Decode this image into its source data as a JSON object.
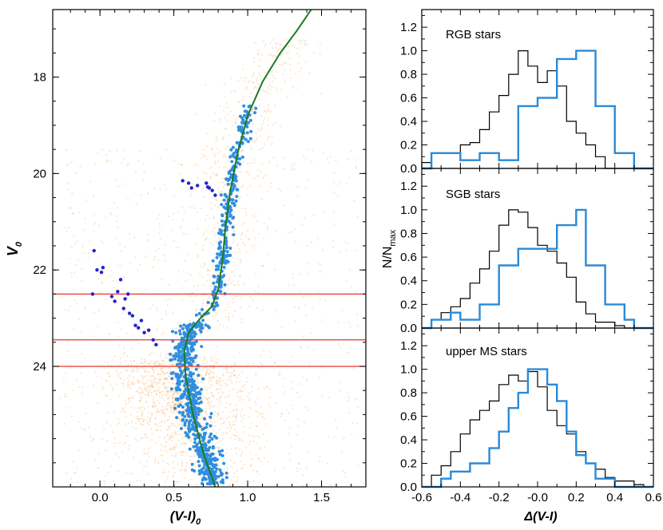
{
  "chart_data": [
    {
      "type": "scatter",
      "panel": "left",
      "xlabel": "(V-I)",
      "xlabel_sub": "0",
      "ylabel": "V",
      "ylabel_sub": "0",
      "xlim": [
        -0.32,
        1.8
      ],
      "ylim": [
        26.5,
        16.6
      ],
      "y_inverted": true,
      "xticks": [
        0.0,
        0.5,
        1.0,
        1.5
      ],
      "xtick_labels": [
        "0.0",
        "0.5",
        "1.0",
        "1.5"
      ],
      "yticks": [
        18,
        20,
        22,
        24
      ],
      "ytick_labels": [
        "18",
        "20",
        "22",
        "24"
      ],
      "horizontal_lines": [
        22.5,
        23.45,
        24.0
      ],
      "hline_color": "#e8342a",
      "background_stars_color": "#f7a44a",
      "selected_stars_color": "#2f8fe0",
      "hb_stars_color": "#2222cc",
      "isochrone_color": "#1d7a1d",
      "isochrone": [
        {
          "x": 0.78,
          "y": 26.5
        },
        {
          "x": 0.7,
          "y": 25.8
        },
        {
          "x": 0.63,
          "y": 25.0
        },
        {
          "x": 0.58,
          "y": 24.2
        },
        {
          "x": 0.57,
          "y": 23.7
        },
        {
          "x": 0.6,
          "y": 23.3
        },
        {
          "x": 0.68,
          "y": 23.0
        },
        {
          "x": 0.76,
          "y": 22.75
        },
        {
          "x": 0.8,
          "y": 22.4
        },
        {
          "x": 0.83,
          "y": 21.8
        },
        {
          "x": 0.85,
          "y": 21.1
        },
        {
          "x": 0.88,
          "y": 20.4
        },
        {
          "x": 0.93,
          "y": 19.6
        },
        {
          "x": 1.0,
          "y": 18.8
        },
        {
          "x": 1.1,
          "y": 18.1
        },
        {
          "x": 1.22,
          "y": 17.5
        },
        {
          "x": 1.33,
          "y": 17.05
        },
        {
          "x": 1.43,
          "y": 16.6
        }
      ],
      "hb_stars": [
        {
          "x": 0.56,
          "y": 20.15
        },
        {
          "x": 0.6,
          "y": 20.2
        },
        {
          "x": 0.62,
          "y": 20.3
        },
        {
          "x": 0.66,
          "y": 20.25
        },
        {
          "x": 0.72,
          "y": 20.2
        },
        {
          "x": 0.74,
          "y": 20.3
        },
        {
          "x": 0.76,
          "y": 20.35
        },
        {
          "x": 0.78,
          "y": 20.45
        },
        {
          "x": 0.73,
          "y": 20.28
        },
        {
          "x": -0.05,
          "y": 22.5
        },
        {
          "x": -0.04,
          "y": 21.6
        },
        {
          "x": -0.02,
          "y": 22.0
        },
        {
          "x": 0.01,
          "y": 22.05
        },
        {
          "x": 0.02,
          "y": 21.95
        },
        {
          "x": 0.08,
          "y": 22.55
        },
        {
          "x": 0.1,
          "y": 22.65
        },
        {
          "x": 0.12,
          "y": 22.45
        },
        {
          "x": 0.14,
          "y": 22.2
        },
        {
          "x": 0.16,
          "y": 22.8
        },
        {
          "x": 0.17,
          "y": 22.6
        },
        {
          "x": 0.19,
          "y": 22.5
        },
        {
          "x": 0.2,
          "y": 22.9
        },
        {
          "x": 0.22,
          "y": 22.95
        },
        {
          "x": 0.24,
          "y": 23.15
        },
        {
          "x": 0.26,
          "y": 23.2
        },
        {
          "x": 0.28,
          "y": 23.05
        },
        {
          "x": 0.3,
          "y": 23.3
        },
        {
          "x": 0.33,
          "y": 23.25
        },
        {
          "x": 0.36,
          "y": 23.45
        },
        {
          "x": 0.38,
          "y": 23.55
        }
      ]
    },
    {
      "type": "histogram",
      "panel": "RGB",
      "label": "RGB stars",
      "xlim": [
        -0.6,
        0.6
      ],
      "ylim": [
        0.0,
        1.35
      ],
      "yticks": [
        0.0,
        0.2,
        0.4,
        0.6,
        0.8,
        1.0,
        1.2
      ],
      "ytick_labels": [
        "0.0",
        "0.2",
        "0.4",
        "0.6",
        "0.8",
        "1.0",
        "1.2"
      ],
      "bin_width": 0.05,
      "bin_edges": [
        -0.6,
        -0.55,
        -0.5,
        -0.45,
        -0.4,
        -0.35,
        -0.3,
        -0.25,
        -0.2,
        -0.15,
        -0.1,
        -0.05,
        0.0,
        0.05,
        0.1,
        0.15,
        0.2,
        0.25,
        0.3,
        0.35,
        0.4,
        0.45,
        0.5,
        0.55,
        0.6
      ],
      "series": [
        {
          "name": "reference",
          "color": "#000000",
          "width": 1.2,
          "values": [
            0.05,
            0.13,
            0.13,
            0.13,
            0.2,
            0.22,
            0.33,
            0.48,
            0.62,
            0.8,
            1.0,
            0.87,
            0.73,
            0.83,
            0.7,
            0.4,
            0.3,
            0.2,
            0.1,
            0.0,
            0.0,
            0.0,
            0.0,
            0.0
          ]
        },
        {
          "name": "selected",
          "color": "#2a8ad8",
          "width": 2.4,
          "values": [
            0.0,
            0.13,
            0.13,
            0.13,
            0.07,
            0.07,
            0.13,
            0.13,
            0.07,
            0.07,
            0.53,
            0.53,
            0.6,
            0.6,
            0.93,
            0.93,
            1.0,
            1.0,
            0.53,
            0.53,
            0.13,
            0.13,
            0.0,
            0.0
          ]
        }
      ]
    },
    {
      "type": "histogram",
      "panel": "SGB",
      "label": "SGB stars",
      "xlim": [
        -0.6,
        0.6
      ],
      "ylim": [
        0.0,
        1.35
      ],
      "yticks": [
        0.0,
        0.2,
        0.4,
        0.6,
        0.8,
        1.0,
        1.2
      ],
      "ytick_labels": [
        "0.0",
        "0.2",
        "0.4",
        "0.6",
        "0.8",
        "1.0",
        "1.2"
      ],
      "bin_width": 0.05,
      "bin_edges": [
        -0.6,
        -0.55,
        -0.5,
        -0.45,
        -0.4,
        -0.35,
        -0.3,
        -0.25,
        -0.2,
        -0.15,
        -0.1,
        -0.05,
        0.0,
        0.05,
        0.1,
        0.15,
        0.2,
        0.25,
        0.3,
        0.35,
        0.4,
        0.45,
        0.5,
        0.55,
        0.6
      ],
      "series": [
        {
          "name": "reference",
          "color": "#000000",
          "width": 1.2,
          "values": [
            0.0,
            0.07,
            0.13,
            0.18,
            0.25,
            0.38,
            0.5,
            0.65,
            0.87,
            1.0,
            0.98,
            0.85,
            0.7,
            0.65,
            0.55,
            0.43,
            0.22,
            0.12,
            0.05,
            0.05,
            0.02,
            0.0,
            0.0,
            0.0
          ]
        },
        {
          "name": "selected",
          "color": "#2a8ad8",
          "width": 2.4,
          "values": [
            0.0,
            0.07,
            0.07,
            0.13,
            0.07,
            0.07,
            0.2,
            0.2,
            0.53,
            0.53,
            0.67,
            0.67,
            0.67,
            0.67,
            0.87,
            0.87,
            1.0,
            0.53,
            0.53,
            0.2,
            0.2,
            0.07,
            0.0,
            0.0
          ]
        }
      ]
    },
    {
      "type": "histogram",
      "panel": "upper MS",
      "label": "upper MS stars",
      "xlabel": "Δ(V-I)",
      "xlim": [
        -0.6,
        0.6
      ],
      "ylim": [
        0.0,
        1.35
      ],
      "xticks": [
        -0.6,
        -0.4,
        -0.2,
        0.0,
        0.2,
        0.4,
        0.6
      ],
      "xtick_labels": [
        "-0.6",
        "-0.4",
        "-0.2",
        "-0.0",
        "0.2",
        "0.4",
        "0.6"
      ],
      "yticks": [
        0.0,
        0.2,
        0.4,
        0.6,
        0.8,
        1.0,
        1.2
      ],
      "ytick_labels": [
        "0.0",
        "0.2",
        "0.4",
        "0.6",
        "0.8",
        "1.0",
        "1.2"
      ],
      "bin_width": 0.05,
      "bin_edges": [
        -0.6,
        -0.55,
        -0.5,
        -0.45,
        -0.4,
        -0.35,
        -0.3,
        -0.25,
        -0.2,
        -0.15,
        -0.1,
        -0.05,
        0.0,
        0.05,
        0.1,
        0.15,
        0.2,
        0.25,
        0.3,
        0.35,
        0.4,
        0.45,
        0.5,
        0.55,
        0.6
      ],
      "series": [
        {
          "name": "reference",
          "color": "#000000",
          "width": 1.2,
          "values": [
            0.0,
            0.1,
            0.18,
            0.3,
            0.45,
            0.57,
            0.65,
            0.73,
            0.87,
            0.95,
            0.9,
            0.98,
            0.85,
            0.65,
            0.52,
            0.45,
            0.3,
            0.2,
            0.15,
            0.08,
            0.05,
            0.05,
            0.02,
            0.0
          ]
        },
        {
          "name": "selected",
          "color": "#2a8ad8",
          "width": 2.4,
          "values": [
            0.0,
            0.0,
            0.07,
            0.13,
            0.13,
            0.2,
            0.2,
            0.33,
            0.47,
            0.67,
            0.8,
            1.0,
            1.0,
            0.87,
            0.73,
            0.47,
            0.27,
            0.2,
            0.07,
            0.07,
            0.0,
            0.0,
            0.0,
            0.0
          ]
        }
      ]
    }
  ],
  "shared_ylabel": "N/N",
  "shared_ylabel_sub": "max",
  "colors": {
    "axis": "#000000",
    "background": "#ffffff"
  }
}
